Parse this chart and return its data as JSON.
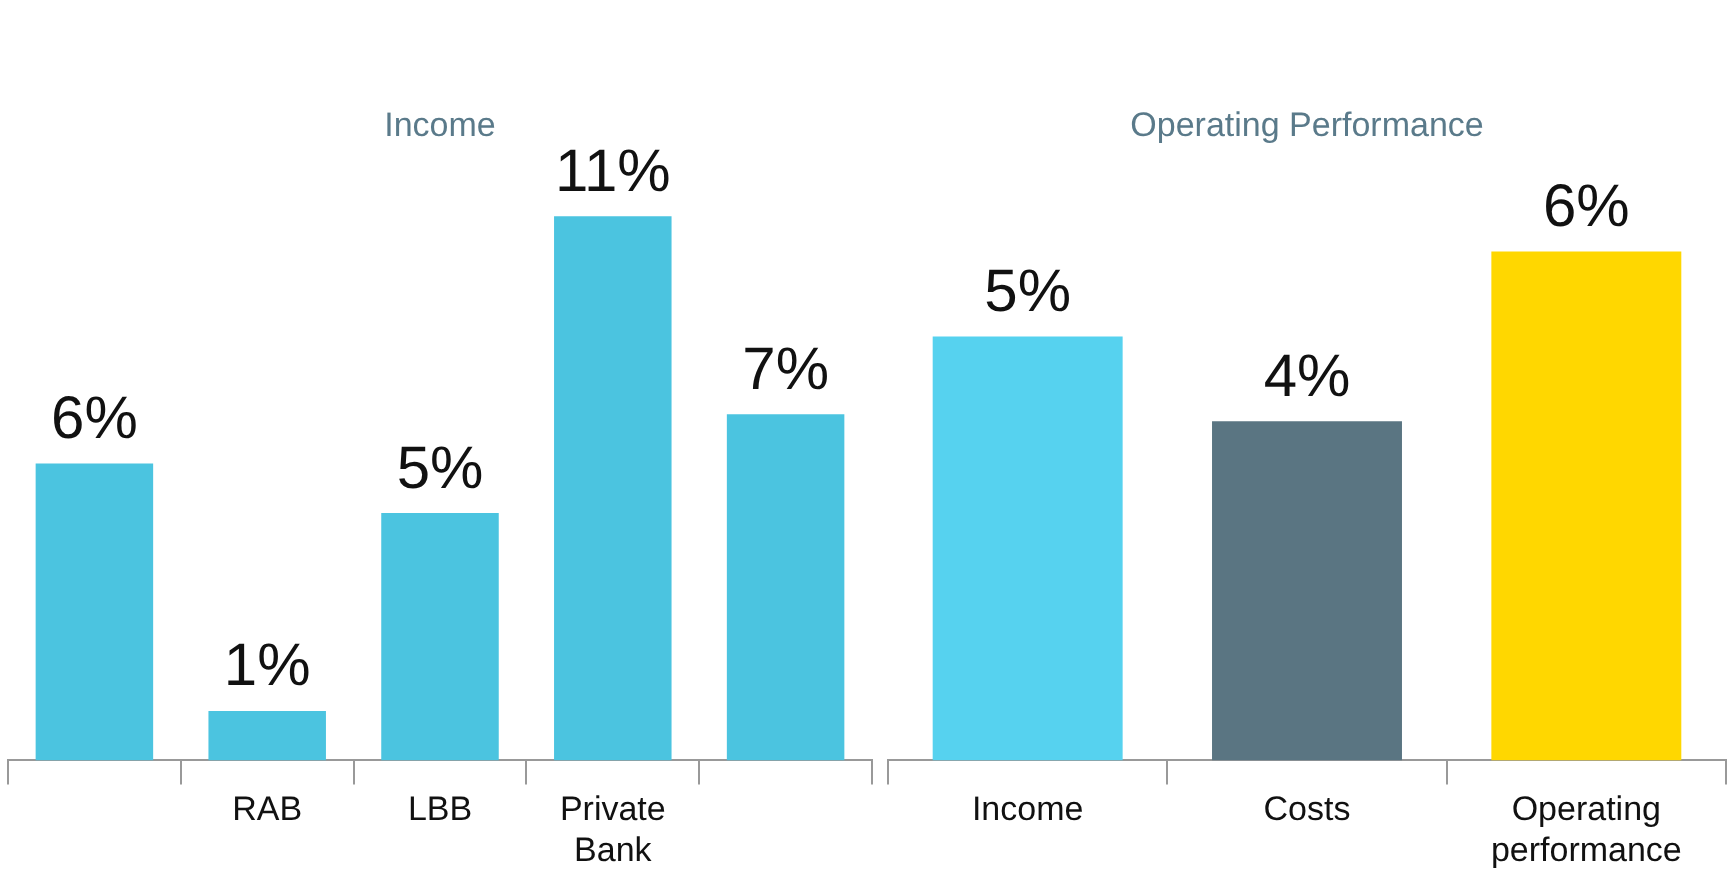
{
  "chart_data": [
    {
      "type": "bar",
      "title": "Income",
      "categories": [
        null,
        "RAB",
        "LBB",
        "Private Bank",
        null
      ],
      "values": [
        6,
        1,
        5,
        11,
        7
      ],
      "value_labels": [
        "6%",
        "1%",
        "5%",
        "11%",
        "7%"
      ],
      "color": "#4bc4e0",
      "grid": false,
      "legend": false,
      "tick_labels": "x"
    },
    {
      "type": "bar",
      "title": "Operating Performance",
      "categories": [
        "Income",
        "Costs",
        "Operating performance"
      ],
      "values": [
        5,
        4,
        6
      ],
      "value_labels": [
        "5%",
        "4%",
        "6%"
      ],
      "colors": [
        "#56d2ef",
        "#5a7582",
        "#ffd700"
      ],
      "grid": false,
      "legend": false,
      "tick_labels": "x"
    }
  ]
}
